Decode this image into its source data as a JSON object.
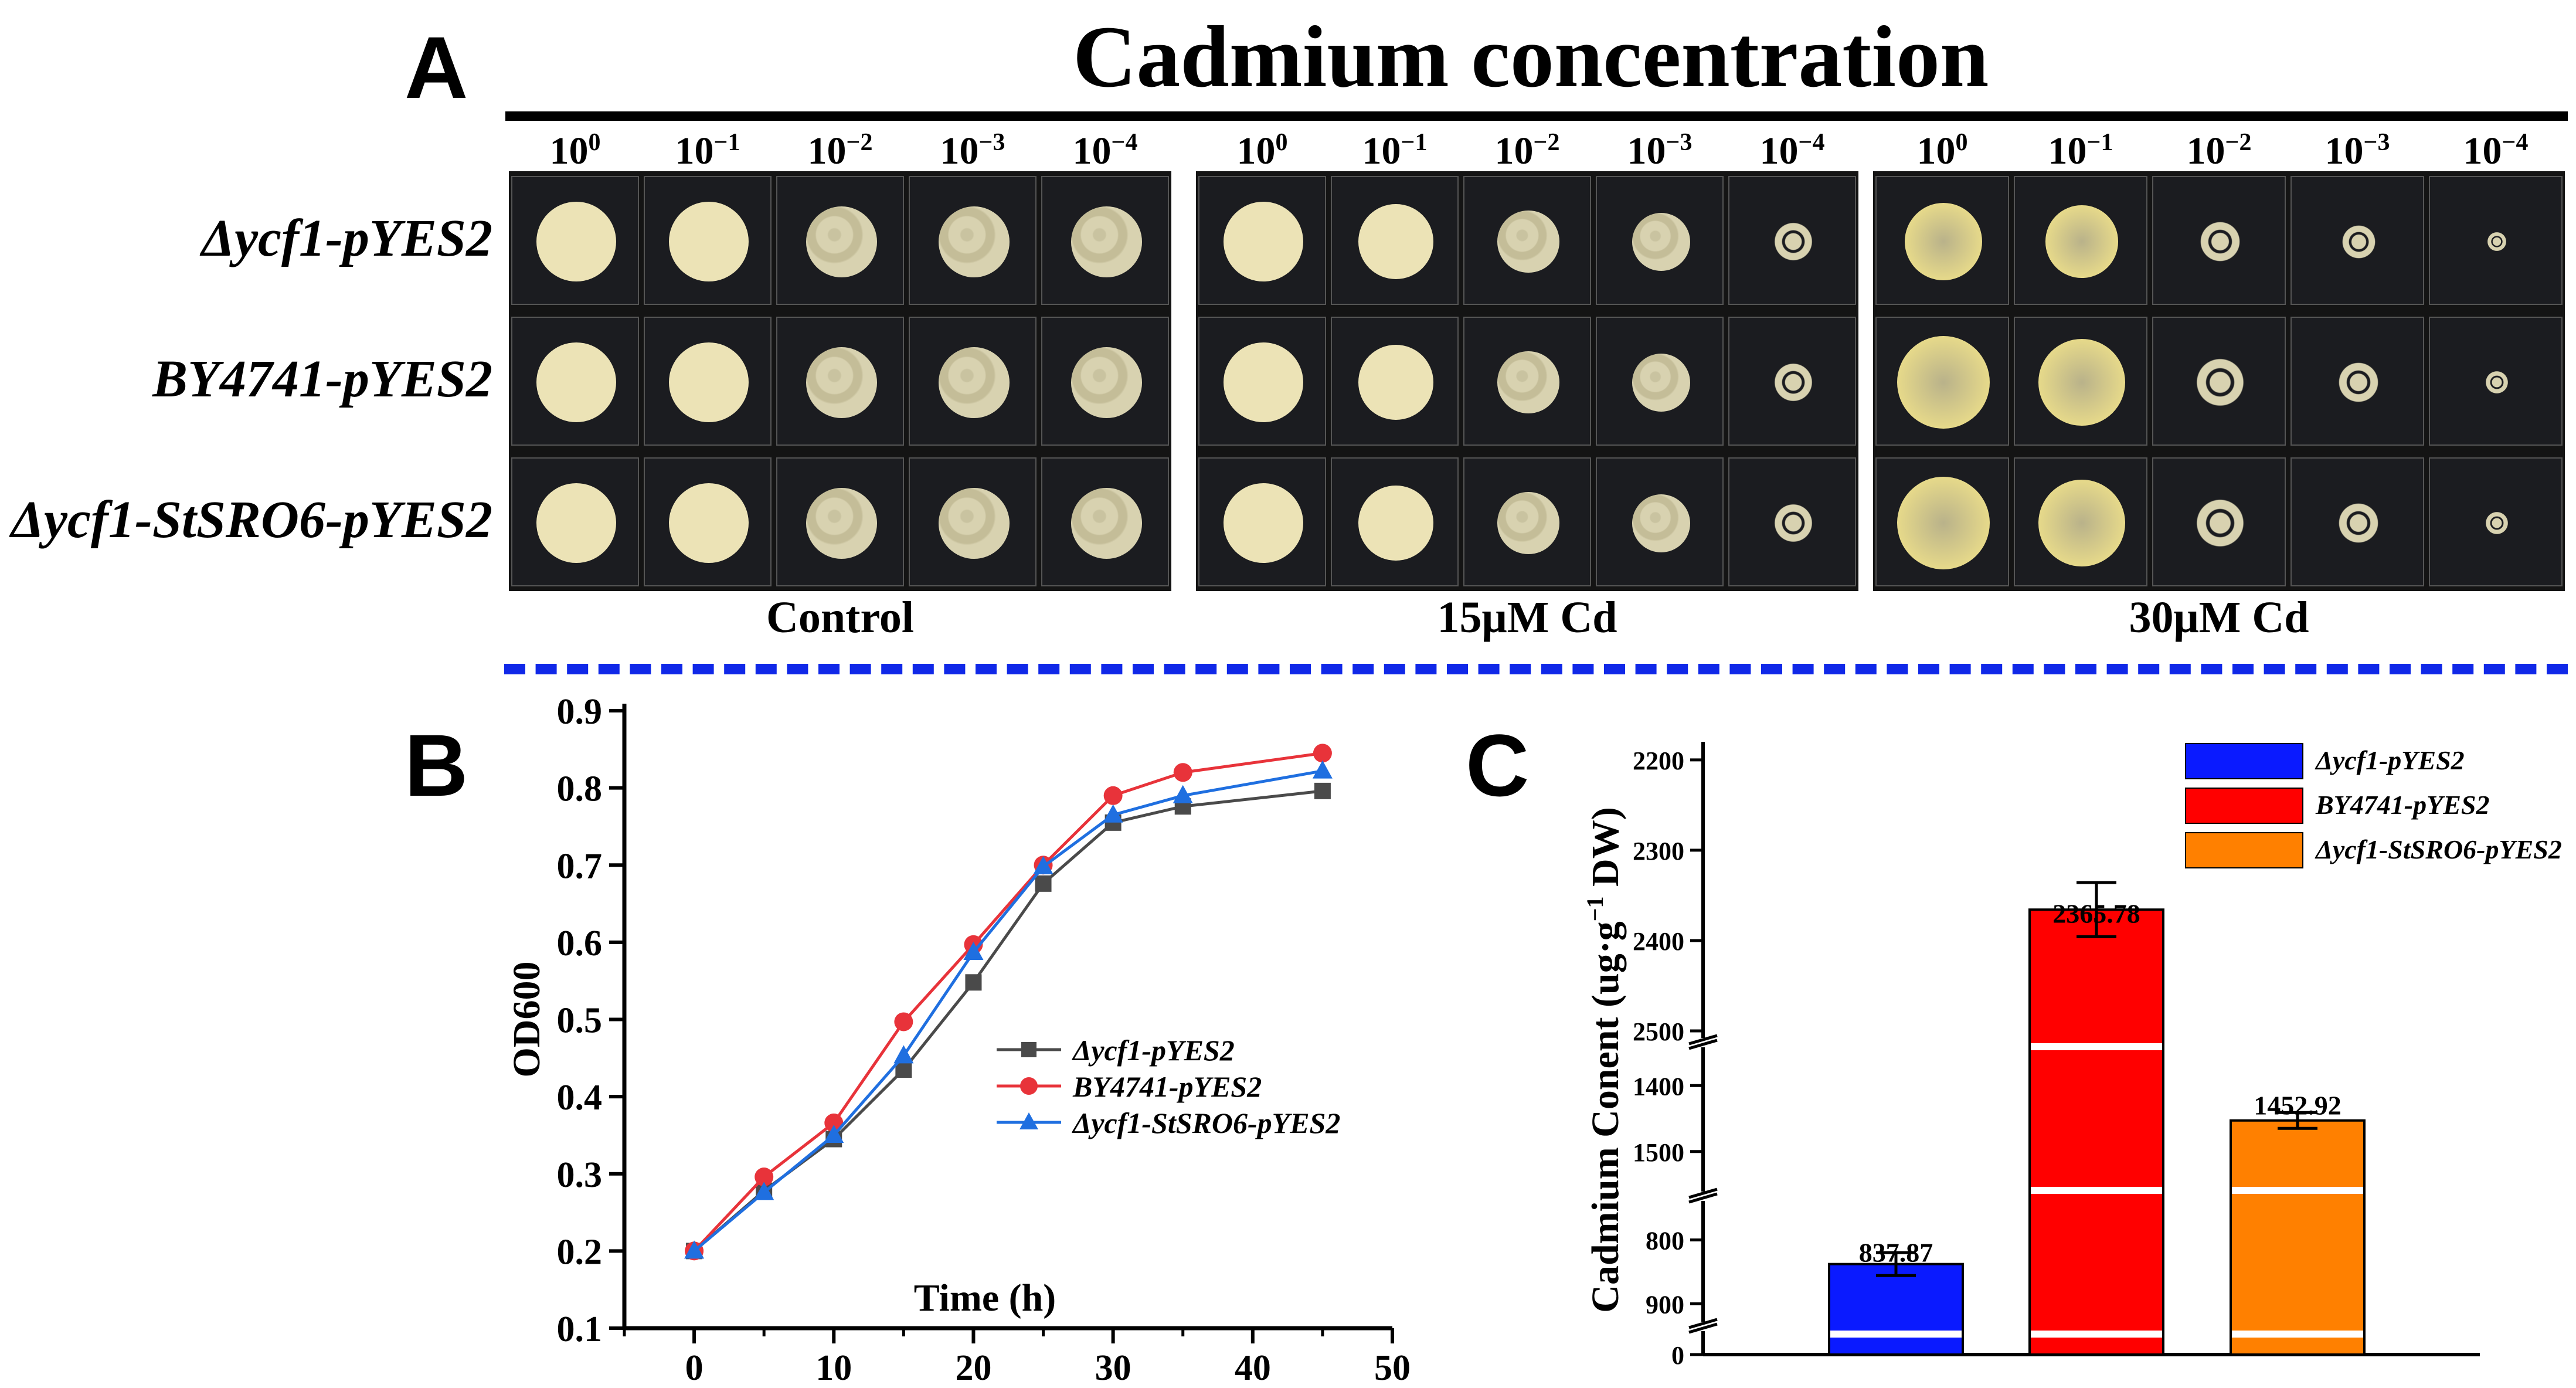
{
  "panel_a": {
    "letter": "A",
    "title": "Cadmium concentration",
    "dilutions": [
      "0",
      "−1",
      "−2",
      "−3",
      "−4"
    ],
    "dilution_base": "10",
    "strains": [
      "Δycf1-pYES2",
      "BY4741-pYES2",
      "Δycf1-StSRO6-pYES2"
    ],
    "conditions": [
      "Control",
      "15μM Cd",
      "30μM Cd"
    ],
    "colors": {
      "plate": "#141414",
      "colony_dense": "#ece3b6",
      "colony_yellow": "#e6d98a",
      "colony_spotty": "#d8d2b0"
    }
  },
  "chart_data": [
    {
      "type": "line",
      "panel_letter": "B",
      "x": [
        0,
        5,
        10,
        15,
        20,
        25,
        30,
        35,
        45
      ],
      "series": [
        {
          "name": "Δycf1-pYES2",
          "marker": "square",
          "color": "#4a4a4a",
          "values": [
            0.2,
            0.278,
            0.345,
            0.435,
            0.548,
            0.676,
            0.755,
            0.776,
            0.796
          ]
        },
        {
          "name": "BY4741-pYES2",
          "marker": "circle",
          "color": "#e8333a",
          "values": [
            0.2,
            0.296,
            0.366,
            0.497,
            0.597,
            0.7,
            0.79,
            0.82,
            0.845
          ]
        },
        {
          "name": "Δycf1-StSRO6-pYES2",
          "marker": "triangle",
          "color": "#1f6fe0",
          "values": [
            0.2,
            0.276,
            0.35,
            0.453,
            0.587,
            0.698,
            0.765,
            0.79,
            0.822
          ]
        }
      ],
      "xlabel": "Time (h)",
      "ylabel": "OD600",
      "xlim": [
        -5,
        50
      ],
      "ylim": [
        0.1,
        0.9
      ],
      "xticks": [
        "0",
        "10",
        "20",
        "30",
        "40",
        "50"
      ],
      "yticks": [
        "0.1",
        "0.2",
        "0.3",
        "0.4",
        "0.5",
        "0.6",
        "0.7",
        "0.8",
        "0.9"
      ],
      "legend": "center-right"
    },
    {
      "type": "bar",
      "panel_letter": "C",
      "categories": [
        "Δycf1-pYES2",
        "BY4741-pYES2",
        "Δycf1-StSRO6-pYES2"
      ],
      "values": [
        837.87,
        2365.78,
        1452.92
      ],
      "value_labels": [
        "837.87",
        "2365.78",
        "1452.92"
      ],
      "errors": [
        18,
        30,
        12
      ],
      "colors": [
        "#0a1aff",
        "#ff0000",
        "#ff8000"
      ],
      "ylabel_main": "Cadmium Conent (ug·g",
      "ylabel_sup": "−1",
      "ylabel_tail": " DW)",
      "axis_breaks": [
        [
          0,
          750
        ],
        [
          930,
          1350
        ],
        [
          1550,
          2180
        ]
      ],
      "yticks": [
        "0",
        "800",
        "900",
        "1400",
        "1500",
        "2200",
        "2300",
        "2400",
        "2500"
      ],
      "legend": "top-right"
    }
  ]
}
